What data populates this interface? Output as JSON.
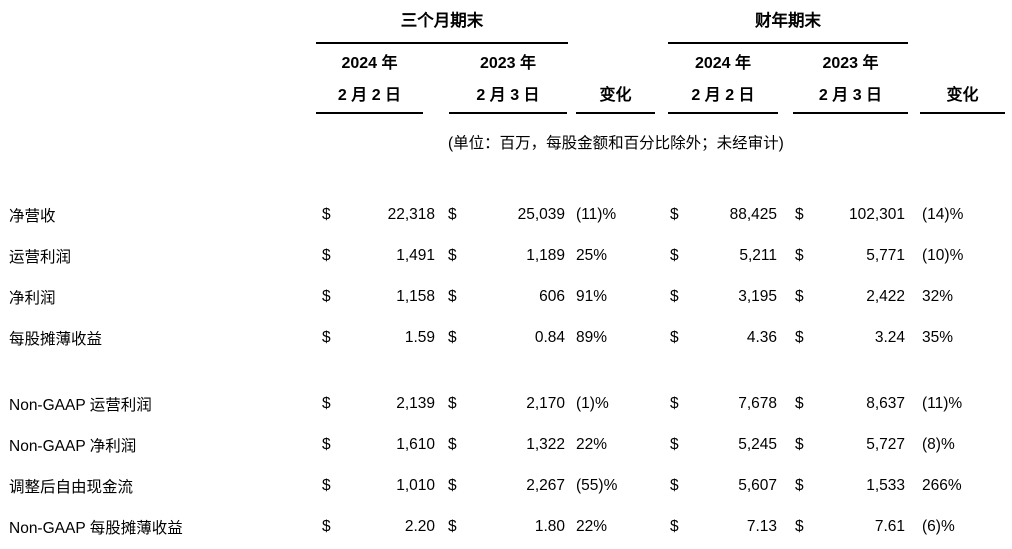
{
  "meta": {
    "currency_symbol": "$",
    "text_color": "#000000",
    "background_color": "#ffffff"
  },
  "table": {
    "groups": {
      "three_months": "三个月期末",
      "fiscal_year": "财年期末"
    },
    "columns": {
      "q2024": {
        "year": "2024 年",
        "date": "2 月 2 日"
      },
      "q2023": {
        "year": "2023 年",
        "date": "2 月 3 日"
      },
      "fy2024": {
        "year": "2024 年",
        "date": "2 月 2 日"
      },
      "fy2023": {
        "year": "2023 年",
        "date": "2 月 3 日"
      },
      "change_label": "变化"
    },
    "note": "(单位：百万，每股金额和百分比除外；未经审计)",
    "gaap_rows": [
      {
        "label": "净营收",
        "q2024": "22,318",
        "q2023": "25,039",
        "q_change": "(11)%",
        "fy2024": "88,425",
        "fy2023": "102,301",
        "fy_change": "(14)%"
      },
      {
        "label": "运营利润",
        "q2024": "1,491",
        "q2023": "1,189",
        "q_change": "25%",
        "fy2024": "5,211",
        "fy2023": "5,771",
        "fy_change": "(10)%"
      },
      {
        "label": "净利润",
        "q2024": "1,158",
        "q2023": "606",
        "q_change": "91%",
        "fy2024": "3,195",
        "fy2023": "2,422",
        "fy_change": "32%"
      },
      {
        "label": "每股摊薄收益",
        "q2024": "1.59",
        "q2023": "0.84",
        "q_change": "89%",
        "fy2024": "4.36",
        "fy2023": "3.24",
        "fy_change": "35%"
      }
    ],
    "non_gaap_rows": [
      {
        "label": "Non-GAAP 运营利润",
        "q2024": "2,139",
        "q2023": "2,170",
        "q_change": "(1)%",
        "fy2024": "7,678",
        "fy2023": "8,637",
        "fy_change": "(11)%"
      },
      {
        "label": "Non-GAAP 净利润",
        "q2024": "1,610",
        "q2023": "1,322",
        "q_change": "22%",
        "fy2024": "5,245",
        "fy2023": "5,727",
        "fy_change": "(8)%"
      },
      {
        "label": "调整后自由现金流",
        "q2024": "1,010",
        "q2023": "2,267",
        "q_change": "(55)%",
        "fy2024": "5,607",
        "fy2023": "1,533",
        "fy_change": "266%"
      },
      {
        "label": "Non-GAAP 每股摊薄收益",
        "q2024": "2.20",
        "q2023": "1.80",
        "q_change": "22%",
        "fy2024": "7.13",
        "fy2023": "7.61",
        "fy_change": "(6)%"
      }
    ]
  }
}
